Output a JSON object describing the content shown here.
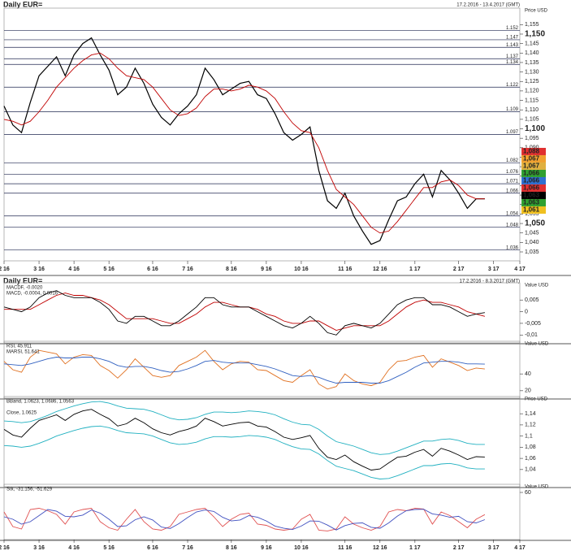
{
  "chart_data": [
    {
      "type": "line",
      "title": "Daily EUR=",
      "subtitle": "17.2.2016 - 13.4.2017 (GMT)",
      "y_label": "Price USD",
      "categories": [
        "2 16",
        null,
        null,
        null,
        "3 16",
        null,
        null,
        null,
        "4 16",
        null,
        null,
        null,
        "5 16",
        null,
        null,
        null,
        null,
        "6 16",
        null,
        null,
        null,
        "7 16",
        null,
        null,
        null,
        null,
        "8 16",
        null,
        null,
        null,
        "9 16",
        null,
        null,
        null,
        "10 16",
        null,
        null,
        null,
        null,
        "11 16",
        null,
        null,
        null,
        "12 16",
        null,
        null,
        null,
        "1 17",
        null,
        null,
        null,
        null,
        "2 17",
        null,
        null,
        null,
        "3 17",
        null,
        null,
        "4 17"
      ],
      "series": [
        {
          "name": "Close",
          "color": "#000000",
          "values": [
            1.112,
            1.102,
            1.098,
            1.114,
            1.128,
            1.133,
            1.138,
            1.128,
            1.139,
            1.145,
            1.148,
            1.139,
            1.131,
            1.118,
            1.122,
            1.132,
            1.124,
            1.113,
            1.106,
            1.102,
            1.108,
            1.112,
            1.118,
            1.132,
            1.126,
            1.118,
            1.121,
            1.124,
            1.125,
            1.118,
            1.116,
            1.108,
            1.098,
            1.094,
            1.097,
            1.101,
            1.078,
            1.062,
            1.058,
            1.066,
            1.054,
            1.046,
            1.039,
            1.041,
            1.052,
            1.062,
            1.064,
            1.071,
            1.076,
            1.064,
            1.078,
            1.073,
            1.066,
            1.058,
            1.063,
            1.063,
            null,
            null,
            null,
            null
          ]
        },
        {
          "name": "MA",
          "color": "#c00000",
          "values": [
            1.105,
            1.104,
            1.102,
            1.104,
            1.109,
            1.115,
            1.122,
            1.127,
            1.132,
            1.136,
            1.139,
            1.14,
            1.137,
            1.132,
            1.128,
            1.127,
            1.126,
            1.122,
            1.116,
            1.11,
            1.107,
            1.108,
            1.111,
            1.117,
            1.121,
            1.121,
            1.12,
            1.121,
            1.123,
            1.122,
            1.12,
            1.116,
            1.109,
            1.103,
            1.099,
            1.098,
            1.09,
            1.078,
            1.068,
            1.064,
            1.06,
            1.054,
            1.048,
            1.045,
            1.046,
            1.051,
            1.057,
            1.063,
            1.069,
            1.069,
            1.072,
            1.073,
            1.07,
            1.065,
            1.063,
            1.063,
            null,
            null,
            null,
            null
          ]
        }
      ],
      "ylim": [
        1.032,
        1.162
      ],
      "yticks": [
        {
          "value": 1.035,
          "label": "1,035"
        },
        {
          "value": 1.04,
          "label": "1,040"
        },
        {
          "value": 1.045,
          "label": "1,045"
        },
        {
          "value": 1.05,
          "label": "1,050"
        },
        {
          "value": 1.055,
          "label": "1,055"
        },
        {
          "value": 1.06,
          "label": "1,060"
        },
        {
          "value": 1.065,
          "label": "1,065"
        },
        {
          "value": 1.07,
          "label": "1,070"
        },
        {
          "value": 1.075,
          "label": "1,075"
        },
        {
          "value": 1.08,
          "label": "1,080"
        },
        {
          "value": 1.085,
          "label": "1,085"
        },
        {
          "value": 1.09,
          "label": "1,090"
        },
        {
          "value": 1.095,
          "label": "1,095"
        },
        {
          "value": 1.1,
          "label": "1,100"
        },
        {
          "value": 1.105,
          "label": "1,105"
        },
        {
          "value": 1.11,
          "label": "1,110"
        },
        {
          "value": 1.115,
          "label": "1,115"
        },
        {
          "value": 1.12,
          "label": "1,120"
        },
        {
          "value": 1.125,
          "label": "1,125"
        },
        {
          "value": 1.13,
          "label": "1,130"
        },
        {
          "value": 1.135,
          "label": "1,135"
        },
        {
          "value": 1.14,
          "label": "1,140"
        },
        {
          "value": 1.145,
          "label": "1,145"
        },
        {
          "value": 1.15,
          "label": "1,150"
        },
        {
          "value": 1.155,
          "label": "1,155"
        }
      ],
      "levels": [
        1.152,
        1.147,
        1.143,
        1.137,
        1.134,
        1.122,
        1.109,
        1.097,
        1.082,
        1.076,
        1.071,
        1.066,
        1.054,
        1.048,
        1.036
      ],
      "markers": [
        {
          "value": 1.088,
          "label": "1,088",
          "color": "#e03030"
        },
        {
          "value": 1.067,
          "label": "1,067",
          "color": "#f0a030"
        },
        {
          "value": 1.067,
          "label": "1,067",
          "color": "#e0b040"
        },
        {
          "value": 1.066,
          "label": "1,066",
          "color": "#30a030"
        },
        {
          "value": 1.066,
          "label": "1,066",
          "color": "#3070d0"
        },
        {
          "value": 1.066,
          "label": "1,066",
          "color": "#e03030"
        },
        {
          "value": 1.063,
          "label": "1,063",
          "color": "#000000"
        },
        {
          "value": 1.063,
          "label": "1,063",
          "color": "#30a030"
        },
        {
          "value": 1.061,
          "label": "1,061",
          "color": "#f0c020"
        }
      ]
    },
    {
      "type": "line",
      "title": "Daily EUR=",
      "subtitle": "17.2.2016 - 8.3.2017 (GMT)",
      "y_label": "Value USD",
      "series": [
        {
          "name": "MACDF, -0.0020",
          "color": "#c00000",
          "values": [
            0.001,
            0.001,
            0.001,
            0.001,
            0.003,
            0.005,
            0.007,
            0.008,
            0.007,
            0.007,
            0.006,
            0.005,
            0.003,
            0.0,
            -0.003,
            -0.003,
            -0.003,
            -0.003,
            -0.004,
            -0.005,
            -0.005,
            -0.003,
            -0.001,
            0.002,
            0.004,
            0.004,
            0.003,
            0.002,
            0.002,
            0.001,
            -0.001,
            -0.002,
            -0.004,
            -0.005,
            -0.005,
            -0.004,
            -0.004,
            -0.006,
            -0.008,
            -0.007,
            -0.006,
            -0.006,
            -0.006,
            -0.006,
            -0.004,
            -0.001,
            0.002,
            0.004,
            0.005,
            0.004,
            0.004,
            0.003,
            0.002,
            0.0,
            -0.001,
            -0.002,
            null,
            null,
            null,
            null
          ]
        },
        {
          "name": "MACD, -0.0004, 0.0016",
          "color": "#000000",
          "values": [
            0.002,
            0.001,
            0.0,
            0.002,
            0.006,
            0.008,
            0.009,
            0.007,
            0.006,
            0.006,
            0.006,
            0.004,
            0.001,
            -0.004,
            -0.005,
            -0.002,
            -0.002,
            -0.004,
            -0.006,
            -0.006,
            -0.004,
            -0.001,
            0.002,
            0.006,
            0.006,
            0.003,
            0.002,
            0.002,
            0.002,
            0.0,
            -0.002,
            -0.004,
            -0.006,
            -0.007,
            -0.005,
            -0.002,
            -0.005,
            -0.009,
            -0.01,
            -0.006,
            -0.005,
            -0.006,
            -0.007,
            -0.005,
            -0.001,
            0.003,
            0.005,
            0.006,
            0.006,
            0.003,
            0.003,
            0.002,
            0.0,
            -0.002,
            -0.001,
            -0.0004,
            null,
            null,
            null,
            null
          ]
        }
      ],
      "ylim": [
        -0.012,
        0.011
      ],
      "yticks": [
        {
          "value": 0.005,
          "label": "0,005"
        },
        0,
        {
          "value": -0.005,
          "label": "-0,005"
        },
        {
          "value": -0.01,
          "label": "-0,01"
        }
      ]
    },
    {
      "type": "line",
      "y_label": "Value USD",
      "series": [
        {
          "name": "RSI, 45.911",
          "color": "#e07020",
          "values": [
            55,
            45,
            42,
            60,
            68,
            66,
            64,
            52,
            60,
            63,
            62,
            50,
            44,
            35,
            45,
            58,
            48,
            38,
            36,
            38,
            50,
            55,
            60,
            68,
            55,
            45,
            52,
            55,
            54,
            45,
            44,
            38,
            32,
            30,
            38,
            45,
            28,
            22,
            25,
            40,
            32,
            28,
            26,
            30,
            45,
            55,
            56,
            60,
            62,
            48,
            58,
            54,
            50,
            44,
            47,
            45.911,
            null,
            null,
            null,
            null
          ]
        },
        {
          "name": "MARSI, 51.641",
          "color": "#3060c0",
          "values": [
            52,
            51,
            50,
            52,
            55,
            58,
            60,
            59,
            59,
            60,
            60,
            58,
            55,
            50,
            48,
            49,
            49,
            47,
            44,
            42,
            43,
            46,
            50,
            55,
            56,
            54,
            53,
            53,
            53,
            51,
            49,
            46,
            42,
            38,
            37,
            38,
            36,
            32,
            29,
            30,
            30,
            30,
            29,
            29,
            32,
            37,
            42,
            48,
            53,
            54,
            55,
            55,
            54,
            52,
            52,
            51.641,
            null,
            null,
            null,
            null
          ]
        }
      ],
      "ylim": [
        15,
        75
      ],
      "yticks": [
        40,
        20
      ]
    },
    {
      "type": "line",
      "y_label": "Price USD",
      "series": [
        {
          "name": "BBand, 1.0623, 1.0686, 1.0563",
          "color": "#20b0c0",
          "values": [
            1.127,
            1.126,
            1.124,
            1.126,
            1.131,
            1.137,
            1.144,
            1.149,
            1.154,
            1.158,
            1.161,
            1.162,
            1.159,
            1.154,
            1.15,
            1.149,
            1.148,
            1.144,
            1.138,
            1.132,
            1.129,
            1.13,
            1.133,
            1.139,
            1.143,
            1.143,
            1.142,
            1.143,
            1.145,
            1.144,
            1.142,
            1.138,
            1.131,
            1.125,
            1.121,
            1.12,
            1.112,
            1.1,
            1.09,
            1.086,
            1.082,
            1.076,
            1.07,
            1.067,
            1.068,
            1.073,
            1.079,
            1.085,
            1.091,
            1.091,
            1.094,
            1.095,
            1.092,
            1.087,
            1.085,
            1.085,
            null,
            null,
            null,
            null
          ]
        },
        {
          "color": "#20b0c0",
          "values": [
            1.083,
            1.082,
            1.08,
            1.082,
            1.087,
            1.093,
            1.1,
            1.105,
            1.11,
            1.114,
            1.117,
            1.118,
            1.115,
            1.11,
            1.106,
            1.105,
            1.104,
            1.1,
            1.094,
            1.088,
            1.085,
            1.086,
            1.089,
            1.095,
            1.099,
            1.099,
            1.098,
            1.099,
            1.101,
            1.1,
            1.098,
            1.094,
            1.087,
            1.081,
            1.077,
            1.076,
            1.068,
            1.056,
            1.046,
            1.042,
            1.038,
            1.032,
            1.026,
            1.023,
            1.024,
            1.029,
            1.035,
            1.041,
            1.047,
            1.047,
            1.05,
            1.051,
            1.048,
            1.043,
            1.041,
            1.041,
            null,
            null,
            null,
            null
          ]
        },
        {
          "name": "Close, 1.0625",
          "color": "#000000",
          "values": [
            1.112,
            1.102,
            1.098,
            1.114,
            1.128,
            1.133,
            1.138,
            1.128,
            1.139,
            1.145,
            1.148,
            1.139,
            1.131,
            1.118,
            1.122,
            1.132,
            1.124,
            1.113,
            1.106,
            1.102,
            1.108,
            1.112,
            1.118,
            1.132,
            1.126,
            1.118,
            1.121,
            1.124,
            1.125,
            1.118,
            1.116,
            1.108,
            1.098,
            1.094,
            1.097,
            1.101,
            1.078,
            1.062,
            1.058,
            1.066,
            1.054,
            1.046,
            1.039,
            1.041,
            1.052,
            1.062,
            1.064,
            1.071,
            1.076,
            1.064,
            1.078,
            1.073,
            1.066,
            1.058,
            1.063,
            1.0625,
            null,
            null,
            null,
            null
          ]
        }
      ],
      "ylim": [
        1.015,
        1.165
      ],
      "yticks": [
        {
          "value": 1.14,
          "label": "1,14"
        },
        {
          "value": 1.12,
          "label": "1,12"
        },
        {
          "value": 1.1,
          "label": "1,1"
        },
        {
          "value": 1.08,
          "label": "1,08"
        },
        {
          "value": 1.06,
          "label": "1,06"
        },
        {
          "value": 1.04,
          "label": "1,04"
        }
      ]
    },
    {
      "type": "line",
      "y_label": "Value USD",
      "categories": [
        "2 16",
        null,
        null,
        null,
        "3 16",
        null,
        null,
        null,
        "4 16",
        null,
        null,
        null,
        "5 16",
        null,
        null,
        null,
        null,
        "6 16",
        null,
        null,
        null,
        "7 16",
        null,
        null,
        null,
        null,
        "8 16",
        null,
        null,
        null,
        "9 16",
        null,
        null,
        null,
        "10 16",
        null,
        null,
        null,
        null,
        "11 16",
        null,
        null,
        null,
        "12 16",
        null,
        null,
        null,
        "1 17",
        null,
        null,
        null,
        null,
        "2 17",
        null,
        null,
        null,
        "3 17",
        null,
        null,
        "4 17"
      ],
      "series": [
        {
          "name": "Stk, -31.156, -51.629",
          "color": "#e05050",
          "values": [
            -20,
            -80,
            -90,
            -10,
            -5,
            -15,
            -30,
            -70,
            -20,
            -10,
            -5,
            -60,
            -85,
            -95,
            -50,
            -10,
            -60,
            -90,
            -95,
            -80,
            -30,
            -20,
            -10,
            -5,
            -40,
            -80,
            -50,
            -30,
            -25,
            -70,
            -75,
            -90,
            -95,
            -90,
            -50,
            -30,
            -95,
            -98,
            -90,
            -40,
            -70,
            -85,
            -95,
            -80,
            -20,
            -10,
            -15,
            -5,
            -8,
            -70,
            -20,
            -35,
            -60,
            -85,
            -50,
            -31.156,
            null,
            null,
            null,
            null
          ]
        },
        {
          "color": "#4050c0",
          "values": [
            -40,
            -50,
            -70,
            -60,
            -35,
            -10,
            -17,
            -38,
            -40,
            -33,
            -12,
            -25,
            -50,
            -80,
            -77,
            -52,
            -40,
            -53,
            -82,
            -88,
            -68,
            -43,
            -20,
            -12,
            -18,
            -42,
            -57,
            -53,
            -35,
            -42,
            -57,
            -78,
            -87,
            -92,
            -78,
            -57,
            -58,
            -74,
            -94,
            -76,
            -67,
            -65,
            -83,
            -87,
            -65,
            -37,
            -15,
            -10,
            -9,
            -28,
            -33,
            -42,
            -38,
            -60,
            -65,
            -51.629,
            null,
            null,
            null,
            null
          ]
        }
      ],
      "ylim": [
        -120,
        80
      ],
      "yticks": [
        60
      ]
    }
  ]
}
